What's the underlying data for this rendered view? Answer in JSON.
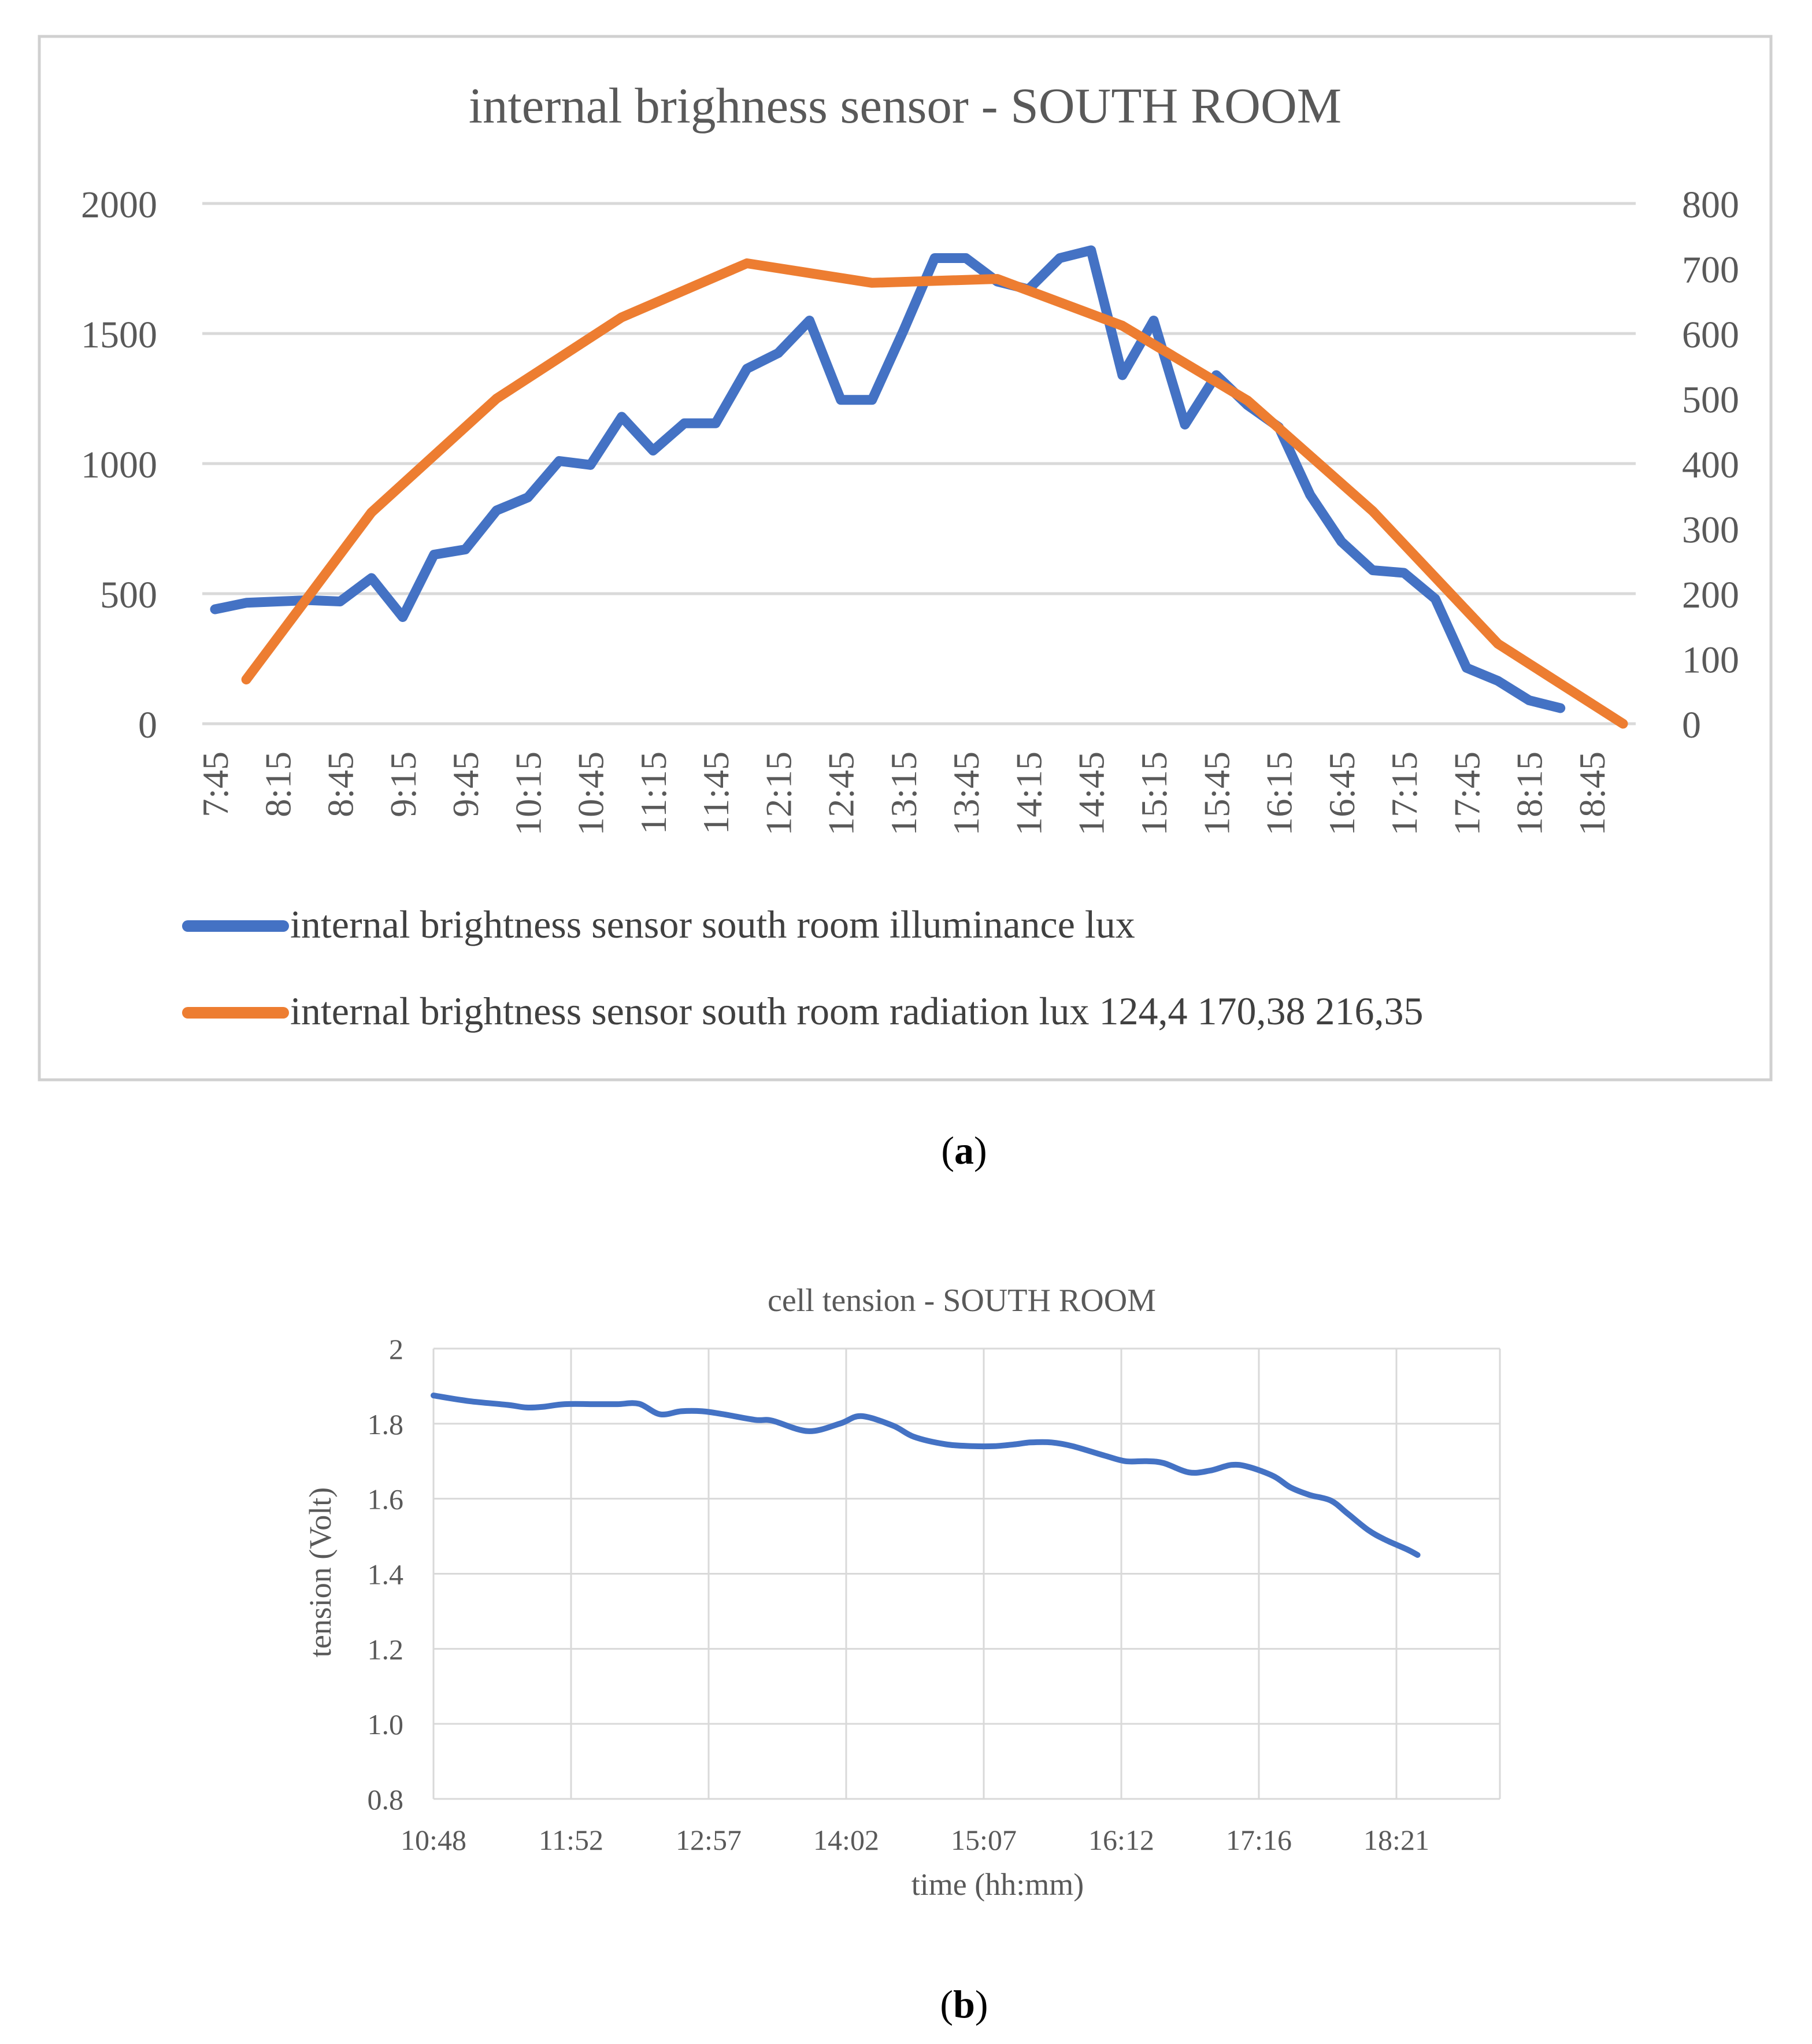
{
  "chart_data": [
    {
      "type": "line",
      "title": "internal brighness sensor - SOUTH  ROOM",
      "panel_label": "a",
      "categories": [
        "7:45",
        "8:00",
        "8:15",
        "8:30",
        "8:45",
        "9:00",
        "9:15",
        "9:30",
        "9:45",
        "10:00",
        "10:15",
        "10:30",
        "10:45",
        "11:00",
        "11:15",
        "11:30",
        "11:45",
        "12:00",
        "12:15",
        "12:30",
        "12:45",
        "13:00",
        "13:15",
        "13:30",
        "13:45",
        "14:00",
        "14:15",
        "14:30",
        "14:45",
        "15:00",
        "15:15",
        "15:30",
        "15:45",
        "16:00",
        "16:15",
        "16:30",
        "16:45",
        "17:00",
        "17:15",
        "17:30",
        "17:45",
        "18:00",
        "18:15",
        "18:30",
        "18:45",
        "19:00"
      ],
      "x_tick_labels": [
        "7:45",
        "8:15",
        "8:45",
        "9:15",
        "9:45",
        "10:15",
        "10:45",
        "11:15",
        "11:45",
        "12:15",
        "12:45",
        "13:15",
        "13:45",
        "14:15",
        "14:45",
        "15:15",
        "15:45",
        "16:15",
        "16:45",
        "17:15",
        "17:45",
        "18:15",
        "18:45"
      ],
      "y_left": {
        "ticks": [
          "2000",
          "1500",
          "1000",
          "500",
          "0"
        ],
        "lim": [
          0,
          2000
        ]
      },
      "y_right": {
        "ticks": [
          "800",
          "700",
          "600",
          "500",
          "400",
          "300",
          "200",
          "100",
          "0"
        ],
        "lim": [
          0,
          800
        ]
      },
      "grid": true,
      "legend_position": "bottom",
      "series": [
        {
          "name": "internal brightness sensor south room illuminance lux",
          "axis": "left",
          "color": "#4472C4",
          "values": [
            440,
            465,
            470,
            475,
            470,
            560,
            410,
            650,
            670,
            820,
            870,
            1010,
            995,
            1180,
            1050,
            1155,
            1155,
            1365,
            1425,
            1550,
            1245,
            1245,
            1510,
            1790,
            1790,
            1700,
            1670,
            1790,
            1820,
            1340,
            1550,
            1150,
            1340,
            1225,
            1140,
            880,
            700,
            590,
            580,
            480,
            215,
            165,
            90,
            60,
            null,
            null
          ]
        },
        {
          "name": "internal brightness sensor south room radiation lux 124,4 170,38 216,35",
          "axis": "right",
          "color": "#ED7D31",
          "values": [
            null,
            68,
            null,
            null,
            null,
            325,
            null,
            null,
            null,
            500,
            null,
            null,
            null,
            625,
            null,
            null,
            null,
            708,
            null,
            null,
            null,
            678,
            null,
            null,
            null,
            684,
            null,
            null,
            null,
            612,
            null,
            null,
            null,
            497,
            null,
            null,
            null,
            327,
            null,
            null,
            null,
            123,
            null,
            null,
            null,
            0
          ]
        }
      ]
    },
    {
      "type": "line",
      "title": "cell tension - SOUTH ROOM",
      "panel_label": "b",
      "xlabel": "time (hh:mm)",
      "ylabel": "tension (Volt)",
      "ylim": [
        0.8,
        2.0
      ],
      "x_tick_labels": [
        "10:48",
        "11:52",
        "12:57",
        "14:02",
        "15:07",
        "16:12",
        "17:16",
        "18:21"
      ],
      "y_tick_labels": [
        "2",
        "1.8",
        "1.6",
        "1.4",
        "1.2",
        "1.0",
        "0.8"
      ],
      "grid": true,
      "series": [
        {
          "name": "cell tension",
          "color": "#4472C4",
          "x_minutes": [
            648,
            665,
            683,
            692,
            700,
            710,
            725,
            735,
            745,
            755,
            765,
            775,
            785,
            800,
            808,
            825,
            840,
            850,
            865,
            875,
            890,
            903,
            913,
            923,
            930,
            940,
            950,
            965,
            975,
            985,
            993,
            1005,
            1015,
            1025,
            1033,
            1045,
            1053,
            1062,
            1072,
            1080,
            1090,
            1098,
            1108,
            1113
          ],
          "values": [
            1.875,
            1.86,
            1.85,
            1.843,
            1.845,
            1.852,
            1.852,
            1.852,
            1.853,
            1.825,
            1.833,
            1.833,
            1.825,
            1.81,
            1.808,
            1.78,
            1.8,
            1.82,
            1.795,
            1.765,
            1.745,
            1.74,
            1.74,
            1.745,
            1.75,
            1.75,
            1.74,
            1.715,
            1.7,
            1.7,
            1.695,
            1.67,
            1.675,
            1.69,
            1.685,
            1.66,
            1.63,
            1.61,
            1.595,
            1.56,
            1.515,
            1.49,
            1.465,
            1.45
          ]
        }
      ]
    }
  ]
}
